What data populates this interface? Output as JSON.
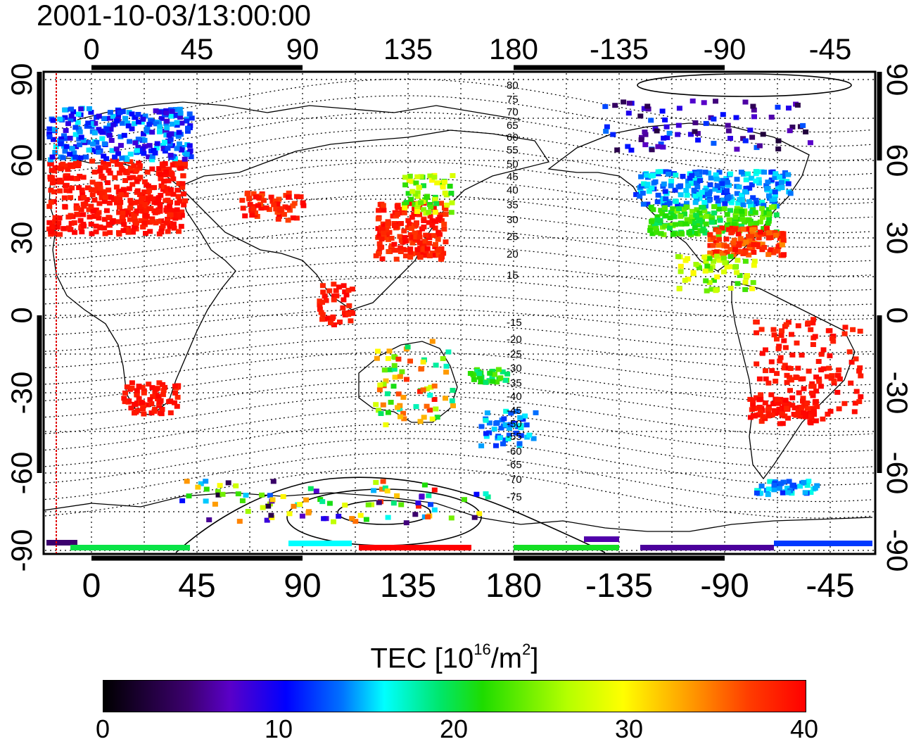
{
  "timestamp": "2001-10-03/13:00:00",
  "lon_ticks": [
    "0",
    "45",
    "90",
    "135",
    "180",
    "-135",
    "-90",
    "-45"
  ],
  "lat_ticks": [
    "90",
    "60",
    "30",
    "0",
    "-30",
    "-60",
    "-90"
  ],
  "contour_labels": [
    "80",
    "75",
    "70",
    "65",
    "60",
    "55",
    "50",
    "45",
    "40",
    "35",
    "30",
    "25",
    "20",
    "15",
    "-15",
    "-20",
    "-25",
    "-30",
    "-35",
    "-40",
    "-45",
    "-50",
    "-55",
    "-60",
    "-65",
    "-70",
    "-75"
  ],
  "colorbar": {
    "title_prefix": "TEC  [10",
    "title_exp": "16",
    "title_mid": "/m",
    "title_exp2": "2",
    "title_suffix": "]",
    "ticks": [
      "0",
      "10",
      "20",
      "30",
      "40"
    ],
    "range": [
      0,
      40
    ]
  },
  "colors": {
    "low": "#000000",
    "blue": "#0000ff",
    "cyan": "#00ffff",
    "green": "#00dd33",
    "yellow": "#ffff00",
    "high": "#ff0000"
  }
}
